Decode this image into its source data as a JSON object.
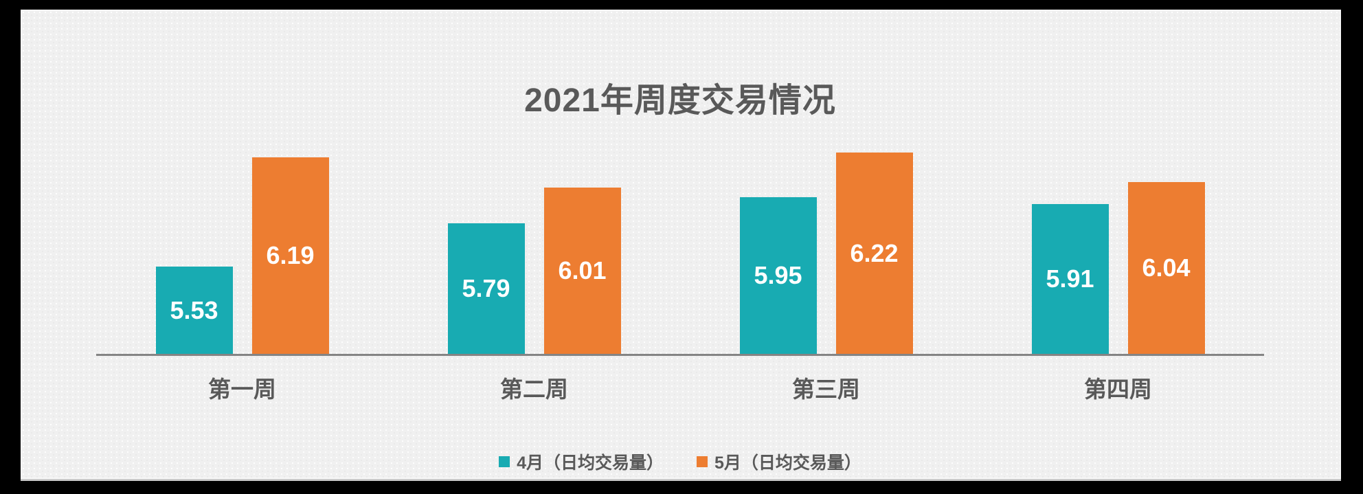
{
  "frame": {
    "outer_background": "#000000",
    "card_background": "#f0f0f0",
    "card_edge_color": "#c9c9c9"
  },
  "chart_data": {
    "type": "bar",
    "title": "2021年周度交易情况",
    "categories": [
      "第一周",
      "第二周",
      "第三周",
      "第四周"
    ],
    "series": [
      {
        "name": "4月（日均交易量）",
        "color": "#18ABB2",
        "values": [
          5.53,
          5.79,
          5.95,
          5.91
        ]
      },
      {
        "name": "5月（日均交易量）",
        "color": "#ED7D31",
        "values": [
          6.19,
          6.01,
          6.22,
          6.04
        ]
      }
    ],
    "ylim": [
      5.0,
      6.4
    ],
    "xlabel": "",
    "ylabel": "",
    "grid": false,
    "y_axis_visible": false,
    "x_axis_line_color": "#848484",
    "value_labels_position": "inside-center",
    "value_label_color": "#ffffff",
    "value_label_format": "0.00",
    "text_color": "#595959",
    "legend_position": "bottom-center"
  }
}
